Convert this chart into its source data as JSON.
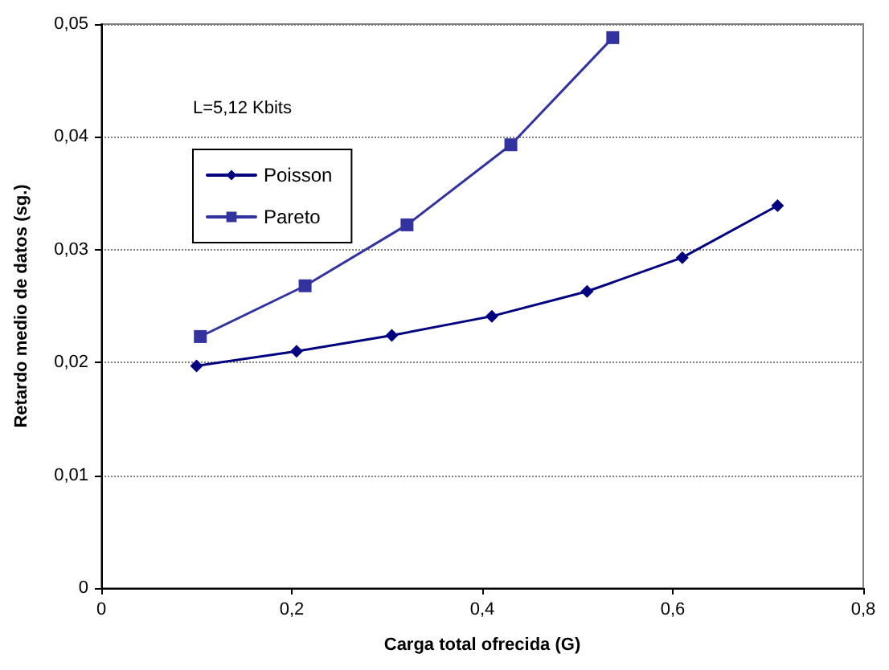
{
  "chart_data": {
    "type": "line",
    "xlabel": "Carga total ofrecida (G)",
    "ylabel": "Retardo medio de datos (sg.)",
    "annotations": [
      "L=5,12 Kbits"
    ],
    "series": [
      {
        "name": "Poisson",
        "color": "#000080",
        "marker": "diamond",
        "x": [
          0.1,
          0.205,
          0.305,
          0.41,
          0.51,
          0.61,
          0.71
        ],
        "values": [
          0.0197,
          0.021,
          0.0224,
          0.0241,
          0.0263,
          0.0293,
          0.0339
        ]
      },
      {
        "name": "Pareto",
        "color": "#3333a0",
        "marker": "square",
        "x": [
          0.104,
          0.214,
          0.321,
          0.43,
          0.537
        ],
        "values": [
          0.0223,
          0.0268,
          0.0322,
          0.0393,
          0.0488
        ]
      }
    ],
    "xlim": [
      0,
      0.8
    ],
    "xticks": [
      0,
      {
        "value": 0.2,
        "label": "0,2"
      },
      {
        "value": 0.4,
        "label": "0,4"
      },
      {
        "value": 0.6,
        "label": "0,6"
      },
      {
        "value": 0.8,
        "label": "0,8"
      }
    ],
    "ylim": [
      0,
      0.05
    ],
    "yticks": [
      0,
      {
        "value": 0.01,
        "label": "0,01"
      },
      {
        "value": 0.02,
        "label": "0,02"
      },
      {
        "value": 0.03,
        "label": "0,03"
      },
      {
        "value": 0.04,
        "label": "0,04"
      },
      {
        "value": 0.05,
        "label": "0,05"
      }
    ],
    "grid": "y",
    "legend": "top left",
    "line_style": "solid"
  }
}
